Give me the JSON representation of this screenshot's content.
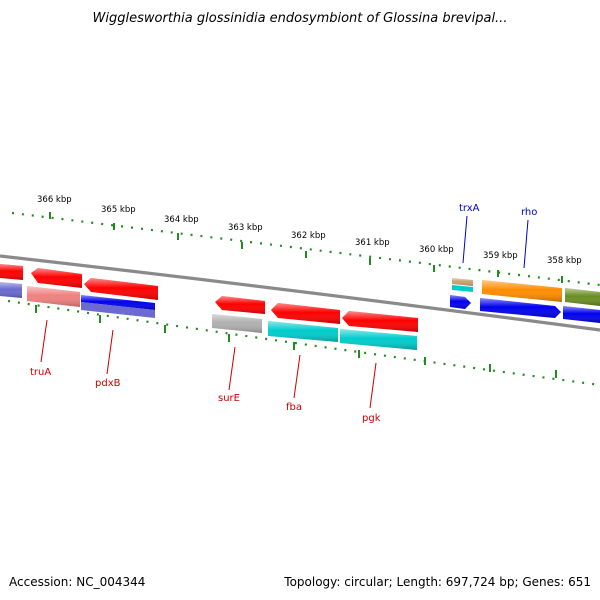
{
  "title": "Wigglesworthia glossinidia endosymbiont of Glossina brevipal...",
  "footer": {
    "accession": "Accession: NC_004344",
    "summary": "Topology: circular; Length: 697,724 bp; Genes: 651"
  },
  "scale_labels": [
    "366 kbp",
    "365 kbp",
    "364 kbp",
    "363 kbp",
    "362 kbp",
    "361 kbp",
    "360 kbp",
    "359 kbp",
    "358 kbp"
  ],
  "gene_labels_top": [
    "trxA",
    "rho"
  ],
  "gene_labels_bottom": [
    "truA",
    "pdxB",
    "surE",
    "fba",
    "pgk"
  ],
  "colors": {
    "scale_ticks": "#228b22",
    "backbone": "#808080",
    "top_labels": "#0000cc",
    "bottom_labels": "#cc0000",
    "red": "#ff0000",
    "salmon": "#f08080",
    "blue": "#0000ee",
    "slate": "#6a6ad0",
    "cyan": "#00cccc",
    "grey": "#b0b0b0",
    "orange": "#ff8c00",
    "olive": "#6b8e23"
  }
}
